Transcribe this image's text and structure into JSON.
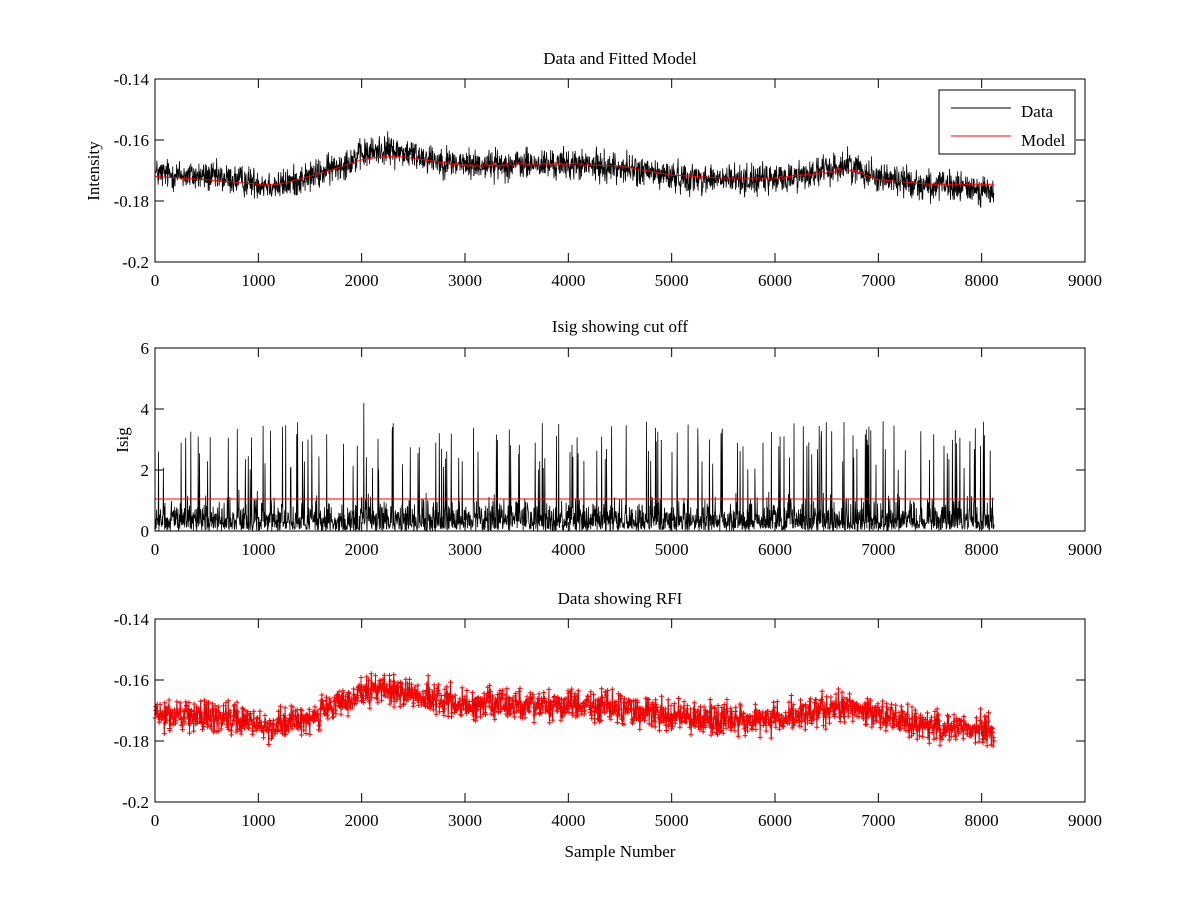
{
  "figure": {
    "background": "#ffffff"
  },
  "colors": {
    "data": "#000000",
    "model": "#ff0000",
    "cutoff": "#ff0000",
    "rfi": "#ff0000"
  },
  "chart_data": [
    {
      "type": "line",
      "title": "Data and Fitted Model",
      "xlabel": "",
      "ylabel": "Intensity",
      "xlim": [
        0,
        9000
      ],
      "ylim": [
        -0.2,
        -0.14
      ],
      "y_reversed": true,
      "xticks": [
        0,
        1000,
        2000,
        3000,
        4000,
        5000,
        6000,
        7000,
        8000,
        9000
      ],
      "xtick_labels": [
        "0",
        "1000",
        "2000",
        "3000",
        "4000",
        "5000",
        "6000",
        "7000",
        "8000",
        "9000"
      ],
      "yticks": [
        -0.14,
        -0.16,
        -0.18,
        -0.2
      ],
      "ytick_labels": [
        "-0.14",
        "-0.16",
        "-0.18",
        "-0.2"
      ],
      "legend": {
        "position": "top-right",
        "entries": [
          "Data",
          "Model"
        ]
      },
      "series": [
        {
          "name": "Data",
          "color": "#000000",
          "noise_amplitude": 0.0075,
          "x": [
            0,
            500,
            1000,
            1200,
            1600,
            2000,
            2200,
            2400,
            2800,
            3000,
            3500,
            4000,
            4500,
            5000,
            5500,
            6000,
            6500,
            6700,
            7000,
            7500,
            8000,
            8120
          ],
          "y": [
            -0.171,
            -0.172,
            -0.174,
            -0.175,
            -0.171,
            -0.165,
            -0.163,
            -0.164,
            -0.167,
            -0.168,
            -0.168,
            -0.168,
            -0.169,
            -0.172,
            -0.173,
            -0.173,
            -0.17,
            -0.168,
            -0.172,
            -0.175,
            -0.176,
            -0.178
          ]
        },
        {
          "name": "Model",
          "color": "#ff0000",
          "x": [
            0,
            500,
            1000,
            1200,
            1600,
            2000,
            2200,
            2400,
            2800,
            3000,
            3500,
            4000,
            4500,
            5000,
            5500,
            6000,
            6500,
            6700,
            7000,
            7500,
            8000,
            8120
          ],
          "y": [
            -0.172,
            -0.173,
            -0.1745,
            -0.1745,
            -0.171,
            -0.1665,
            -0.1655,
            -0.1655,
            -0.1675,
            -0.1685,
            -0.168,
            -0.168,
            -0.1685,
            -0.1715,
            -0.1725,
            -0.1725,
            -0.1705,
            -0.1695,
            -0.173,
            -0.1745,
            -0.1745,
            -0.1745
          ]
        }
      ]
    },
    {
      "type": "line",
      "title": "Isig showing cut off",
      "xlabel": "",
      "ylabel": "Isig",
      "xlim": [
        0,
        9000
      ],
      "ylim": [
        0,
        6
      ],
      "xticks": [
        0,
        1000,
        2000,
        3000,
        4000,
        5000,
        6000,
        7000,
        8000,
        9000
      ],
      "xtick_labels": [
        "0",
        "1000",
        "2000",
        "3000",
        "4000",
        "5000",
        "6000",
        "7000",
        "8000",
        "9000"
      ],
      "yticks": [
        0,
        2,
        4,
        6
      ],
      "ytick_labels": [
        "0",
        "2",
        "4",
        "6"
      ],
      "series": [
        {
          "name": "Isig",
          "color": "#000000",
          "x_range": [
            0,
            8120
          ],
          "baseline": 0.0,
          "typical_max": 2.0,
          "peak_max": 3.6,
          "spike": {
            "x": 2020,
            "y": 4.2
          }
        },
        {
          "name": "Cut off",
          "color": "#ff0000",
          "x": [
            0,
            8120
          ],
          "y": [
            1.05,
            1.05
          ]
        }
      ]
    },
    {
      "type": "scatter",
      "title": "Data showing RFI",
      "xlabel": "Sample Number",
      "ylabel": "",
      "xlim": [
        0,
        9000
      ],
      "ylim": [
        -0.2,
        -0.14
      ],
      "y_reversed": true,
      "xticks": [
        0,
        1000,
        2000,
        3000,
        4000,
        5000,
        6000,
        7000,
        8000,
        9000
      ],
      "xtick_labels": [
        "0",
        "1000",
        "2000",
        "3000",
        "4000",
        "5000",
        "6000",
        "7000",
        "8000",
        "9000"
      ],
      "yticks": [
        -0.14,
        -0.16,
        -0.18,
        -0.2
      ],
      "ytick_labels": [
        "-0.14",
        "-0.16",
        "-0.18",
        "-0.2"
      ],
      "series": [
        {
          "name": "Data",
          "color": "#000000",
          "noise_amplitude": 0.0075,
          "x": [
            0,
            500,
            1000,
            1200,
            1600,
            2000,
            2200,
            2400,
            2800,
            3000,
            3500,
            4000,
            4500,
            5000,
            5500,
            6000,
            6500,
            6700,
            7000,
            7500,
            8000,
            8120
          ],
          "y": [
            -0.171,
            -0.172,
            -0.174,
            -0.175,
            -0.171,
            -0.165,
            -0.163,
            -0.164,
            -0.167,
            -0.168,
            -0.168,
            -0.168,
            -0.169,
            -0.172,
            -0.173,
            -0.173,
            -0.17,
            -0.168,
            -0.172,
            -0.175,
            -0.176,
            -0.178
          ]
        },
        {
          "name": "RFI",
          "color": "#ff0000",
          "marker": "+",
          "source": "Data"
        }
      ]
    }
  ]
}
